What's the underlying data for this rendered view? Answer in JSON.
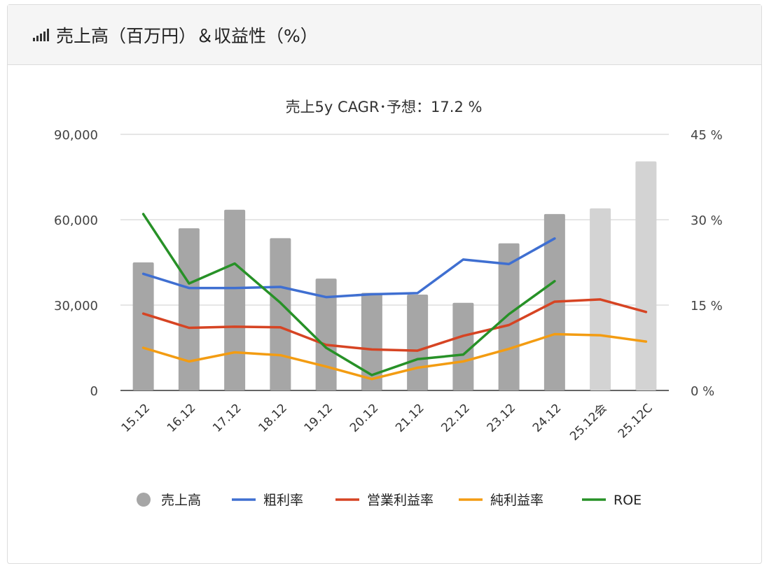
{
  "header": {
    "title": "売上高（百万円）＆収益性（%）",
    "icon": "signal-bars-icon"
  },
  "chart_data": {
    "type": "bar",
    "title": "売上5y CAGR･予想：17.2 %",
    "categories": [
      "15.12",
      "16.12",
      "17.12",
      "18.12",
      "19.12",
      "20.12",
      "21.12",
      "22.12",
      "23.12",
      "24.12",
      "25.12会",
      "25.12C"
    ],
    "y_left": {
      "ylim": [
        0,
        90000
      ],
      "ticks": [
        "0",
        "30,000",
        "60,000",
        "90,000"
      ],
      "tick_values": [
        0,
        30000,
        60000,
        90000
      ]
    },
    "y_right": {
      "ylim": [
        0,
        45
      ],
      "ticks": [
        "0 %",
        "15 %",
        "30 %",
        "45 %"
      ],
      "tick_values": [
        0,
        15,
        30,
        45
      ]
    },
    "grid": true,
    "legend_position": "bottom",
    "series": [
      {
        "name": "売上高",
        "kind": "bar",
        "axis": "left",
        "color": "#a6a6a6",
        "forecast_color": "#d3d3d3",
        "forecast_from": 10,
        "values": [
          45000,
          57000,
          63500,
          53500,
          39300,
          34300,
          33700,
          30800,
          51700,
          62000,
          64000,
          80500
        ]
      },
      {
        "name": "粗利率",
        "kind": "line",
        "axis": "right",
        "color": "#3f6fd1",
        "values": [
          20.5,
          18.0,
          18.0,
          18.2,
          16.4,
          16.9,
          17.1,
          23.0,
          22.2,
          26.7,
          null,
          null
        ]
      },
      {
        "name": "営業利益率",
        "kind": "line",
        "axis": "right",
        "color": "#d64423",
        "values": [
          13.5,
          11.0,
          11.2,
          11.1,
          8.0,
          7.2,
          7.0,
          9.6,
          11.5,
          15.6,
          16.0,
          13.8
        ]
      },
      {
        "name": "純利益率",
        "kind": "line",
        "axis": "right",
        "color": "#f39c12",
        "values": [
          7.5,
          5.1,
          6.7,
          6.2,
          4.2,
          2.0,
          4.0,
          5.1,
          7.3,
          9.9,
          9.7,
          8.6
        ]
      },
      {
        "name": "ROE",
        "kind": "line",
        "axis": "right",
        "color": "#279127",
        "values": [
          31.0,
          18.8,
          22.3,
          15.4,
          7.5,
          2.7,
          5.5,
          6.3,
          13.4,
          19.2,
          null,
          null
        ]
      }
    ]
  }
}
